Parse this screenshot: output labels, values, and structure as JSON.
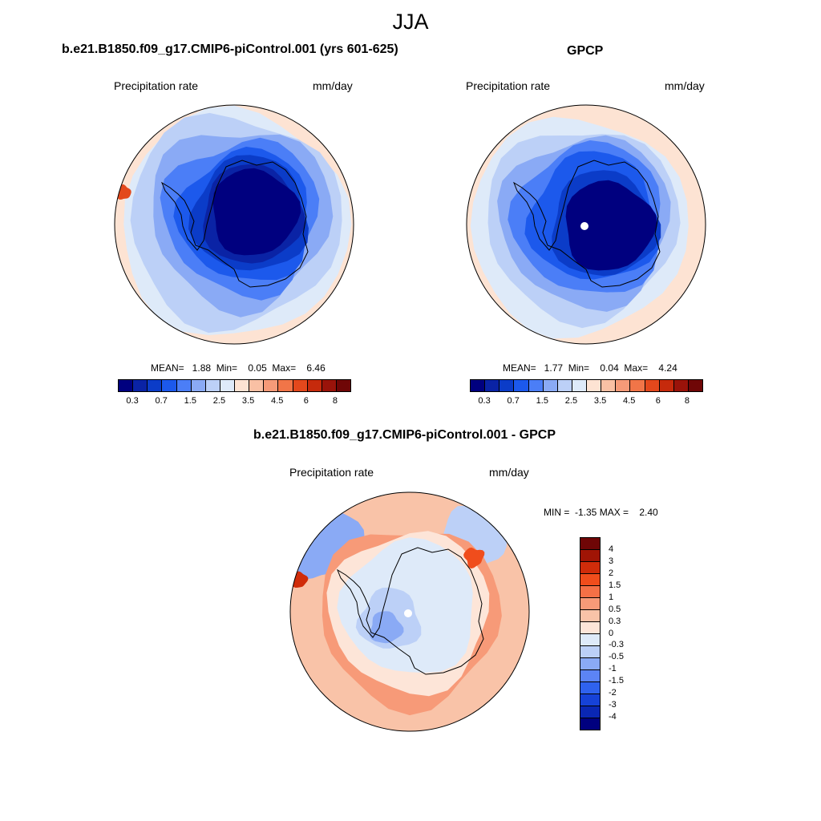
{
  "main_title": "JJA",
  "panels": [
    {
      "title": "b.e21.B1850.f09_g17.CMIP6-piControl.001 (yrs 601-625)",
      "variable": "Precipitation rate",
      "units": "mm/day",
      "stats": "MEAN=   1.88  Min=    0.05  Max=    6.46"
    },
    {
      "title": "GPCP",
      "variable": "Precipitation rate",
      "units": "mm/day",
      "stats": "MEAN=   1.77  Min=    0.04  Max=    4.24"
    },
    {
      "title": "b.e21.B1850.f09_g17.CMIP6-piControl.001 - GPCP",
      "variable": "Precipitation rate",
      "units": "mm/day",
      "stats": "MIN =  -1.35 MAX =    2.40"
    }
  ],
  "abs_colorbar": {
    "colors": [
      "#00007f",
      "#0a23a5",
      "#0b3cc8",
      "#1c59ec",
      "#4b7ef7",
      "#8aaaf5",
      "#bcd0f7",
      "#deeaf9",
      "#fde3d3",
      "#f9c0a4",
      "#f59a78",
      "#f17548",
      "#e3481c",
      "#c62a0c",
      "#9a130a",
      "#6f0606"
    ],
    "ticks": [
      "0.3",
      "0.7",
      "1.5",
      "2.5",
      "3.5",
      "4.5",
      "6",
      "8"
    ]
  },
  "diff_colorbar": {
    "colors": [
      "#6f0606",
      "#a01405",
      "#d02c0a",
      "#f04d1c",
      "#f47046",
      "#f79a78",
      "#f9c3a8",
      "#fde5d8",
      "#deeaf9",
      "#bcd0f7",
      "#8aaaf5",
      "#5c84f5",
      "#2f62ee",
      "#1642d8",
      "#0a27b4",
      "#00007f"
    ],
    "ticks": [
      "4",
      "3",
      "2",
      "1.5",
      "1",
      "0.5",
      "0.3",
      "0",
      "-0.3",
      "-0.5",
      "-1",
      "-1.5",
      "-2",
      "-3",
      "-4"
    ]
  }
}
